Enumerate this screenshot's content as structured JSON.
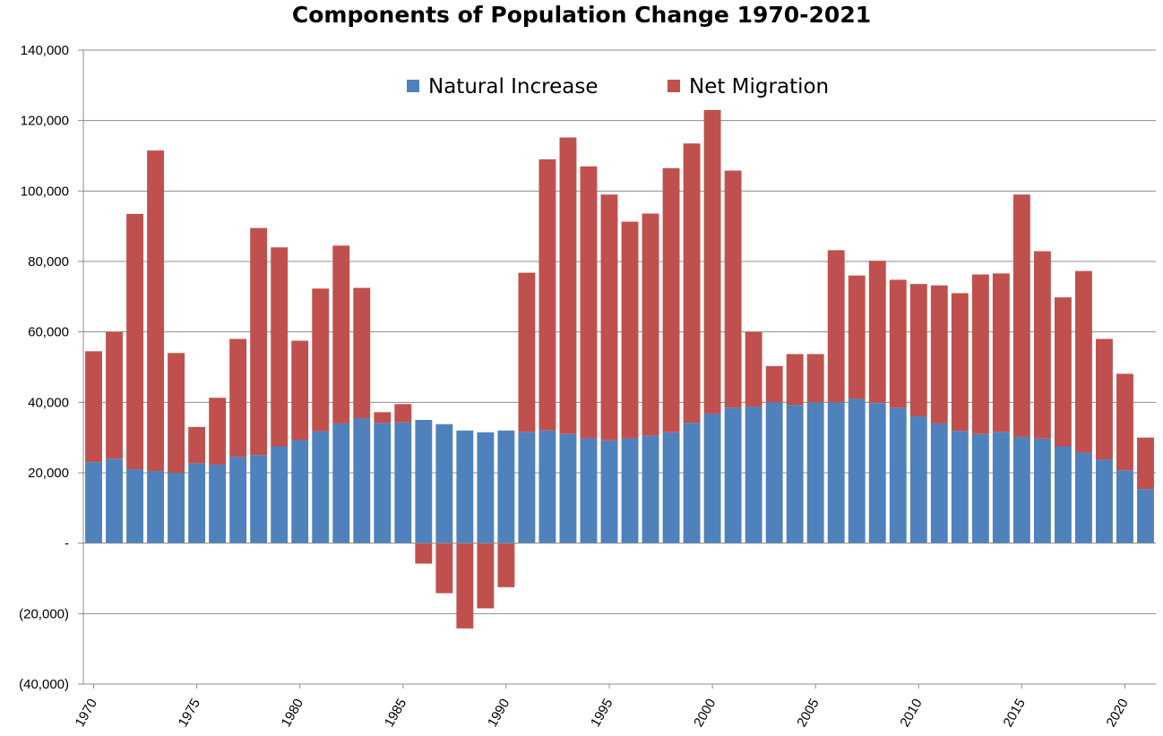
{
  "chart_data": {
    "type": "bar",
    "stacked": true,
    "title": "Components of Population Change 1970-2021",
    "xlabel": "",
    "ylabel": "",
    "ylim": [
      -40000,
      140000
    ],
    "grid": true,
    "legend_position": "top-center",
    "y_tick_labels": [
      "(40,000)",
      "(20,000)",
      "-",
      "20,000",
      "40,000",
      "60,000",
      "80,000",
      "100,000",
      "120,000",
      "140,000"
    ],
    "y_tick_values": [
      -40000,
      -20000,
      0,
      20000,
      40000,
      60000,
      80000,
      100000,
      120000,
      140000
    ],
    "x_tick_labels": [
      "1970",
      "1975",
      "1980",
      "1985",
      "1990",
      "1995",
      "2000",
      "2005",
      "2010",
      "2015",
      "2020"
    ],
    "categories": [
      "1970",
      "1971",
      "1972",
      "1973",
      "1974",
      "1975",
      "1976",
      "1977",
      "1978",
      "1979",
      "1980",
      "1981",
      "1982",
      "1983",
      "1984",
      "1985",
      "1986",
      "1987",
      "1988",
      "1989",
      "1990",
      "1991",
      "1992",
      "1993",
      "1994",
      "1995",
      "1996",
      "1997",
      "1998",
      "1999",
      "2000",
      "2001",
      "2002",
      "2003",
      "2004",
      "2005",
      "2006",
      "2007",
      "2008",
      "2009",
      "2010",
      "2011",
      "2012",
      "2013",
      "2014",
      "2015",
      "2016",
      "2017",
      "2018",
      "2019",
      "2020",
      "2021"
    ],
    "series": [
      {
        "name": "Natural Increase",
        "color": "#4f81bd",
        "values": [
          23000,
          24000,
          21000,
          20500,
          20000,
          22700,
          22300,
          24500,
          25000,
          27500,
          29300,
          31800,
          34000,
          35500,
          34200,
          34300,
          35000,
          33800,
          32000,
          31500,
          32000,
          31500,
          32000,
          31000,
          29800,
          29200,
          29800,
          30500,
          31500,
          34200,
          36800,
          38500,
          38800,
          40000,
          39300,
          40000,
          40000,
          41000,
          39800,
          38500,
          36000,
          34000,
          31900,
          31000,
          31600,
          30200,
          29700,
          27500,
          25700,
          23800,
          20700,
          15400
        ]
      },
      {
        "name": "Net Migration",
        "color": "#c0504d",
        "values": [
          31500,
          36000,
          72500,
          91000,
          34000,
          10300,
          19000,
          33500,
          64500,
          56500,
          28200,
          40500,
          50500,
          37000,
          3000,
          5200,
          -5800,
          -14200,
          -24200,
          -18500,
          -12500,
          45300,
          77000,
          84200,
          77200,
          69800,
          61500,
          63100,
          75000,
          79300,
          86200,
          67300,
          21200,
          10300,
          14400,
          13700,
          43200,
          35000,
          40400,
          36300,
          37600,
          39200,
          39100,
          45300,
          45000,
          68800,
          53200,
          42300,
          51600,
          34200,
          27400,
          14600
        ]
      }
    ]
  }
}
